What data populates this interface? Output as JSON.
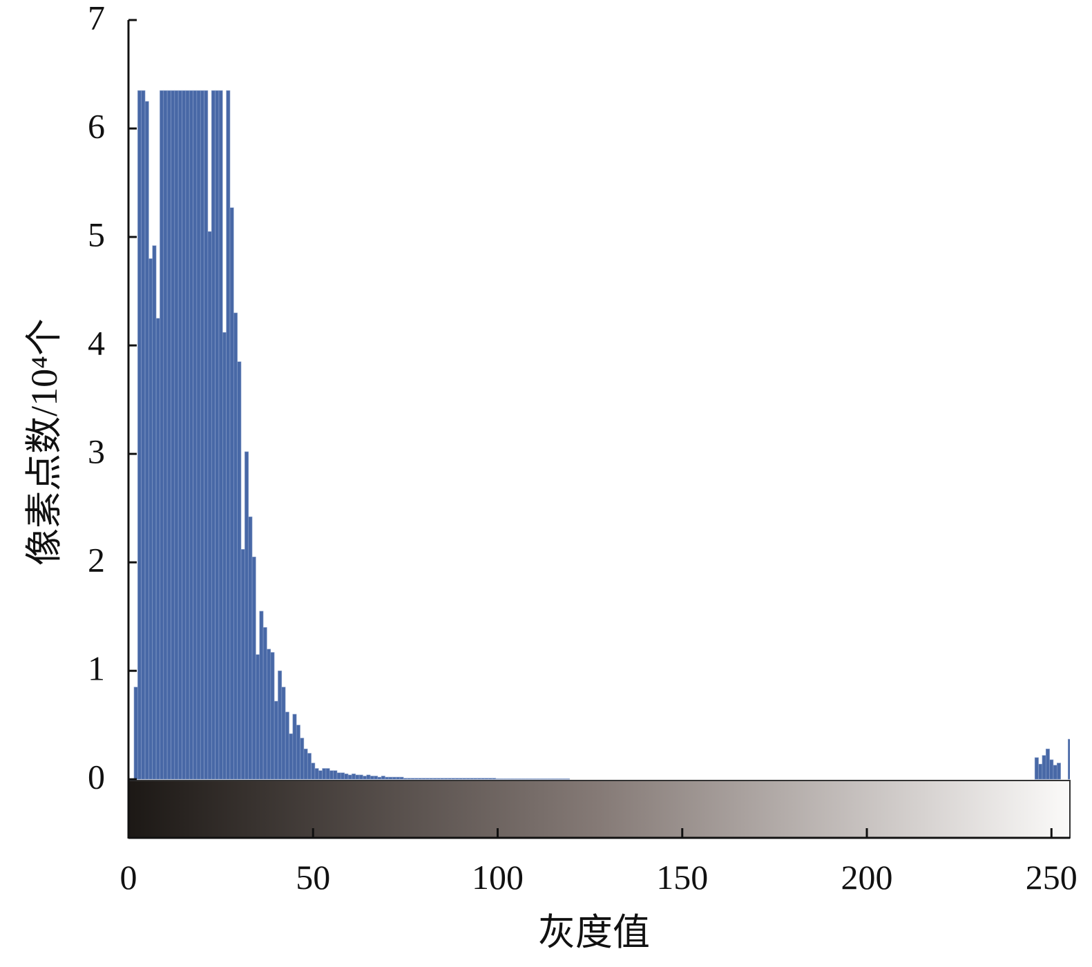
{
  "chart_data": {
    "type": "bar",
    "x_label": "灰度值",
    "y_label": "像素点数/10⁴个",
    "color": "#4868a6",
    "xlim": [
      0,
      255
    ],
    "xticks": [
      0,
      50,
      100,
      150,
      200,
      250
    ],
    "ylim": [
      -0.54,
      7
    ],
    "yticks": [
      0,
      1,
      2,
      3,
      4,
      5,
      6,
      7
    ],
    "x": [
      0,
      1,
      2,
      3,
      4,
      5,
      6,
      7,
      8,
      9,
      10,
      11,
      12,
      13,
      14,
      15,
      16,
      17,
      18,
      19,
      20,
      21,
      22,
      23,
      24,
      25,
      26,
      27,
      28,
      29,
      30,
      31,
      32,
      33,
      34,
      35,
      36,
      37,
      38,
      39,
      40,
      41,
      42,
      43,
      44,
      45,
      46,
      47,
      48,
      49,
      50,
      51,
      52,
      53,
      54,
      55,
      56,
      57,
      58,
      59,
      60,
      61,
      62,
      63,
      64,
      65,
      66,
      67,
      68,
      69,
      70,
      71,
      72,
      73,
      74,
      75,
      76,
      77,
      78,
      79,
      80,
      81,
      82,
      83,
      84,
      85,
      86,
      87,
      88,
      89,
      90,
      91,
      92,
      93,
      94,
      95,
      96,
      97,
      98,
      99,
      100,
      101,
      102,
      103,
      104,
      105,
      106,
      107,
      108,
      109,
      110,
      111,
      112,
      113,
      114,
      115,
      116,
      117,
      118,
      119,
      120,
      121,
      122,
      123,
      124,
      125,
      126,
      127,
      128,
      129,
      130,
      131,
      132,
      133,
      134,
      135,
      136,
      137,
      138,
      139,
      140,
      141,
      142,
      143,
      144,
      145,
      146,
      147,
      148,
      149,
      150,
      151,
      152,
      153,
      154,
      155,
      156,
      157,
      158,
      159,
      160,
      161,
      162,
      163,
      164,
      165,
      166,
      167,
      168,
      169,
      170,
      171,
      172,
      173,
      174,
      175,
      176,
      177,
      178,
      179,
      180,
      181,
      182,
      183,
      184,
      185,
      186,
      187,
      188,
      189,
      190,
      191,
      192,
      193,
      194,
      195,
      196,
      197,
      198,
      199,
      200,
      201,
      202,
      203,
      204,
      205,
      206,
      207,
      208,
      209,
      210,
      211,
      212,
      213,
      214,
      215,
      216,
      217,
      218,
      219,
      220,
      221,
      222,
      223,
      224,
      225,
      226,
      227,
      228,
      229,
      230,
      231,
      232,
      233,
      234,
      235,
      236,
      237,
      238,
      239,
      240,
      241,
      242,
      243,
      244,
      245,
      246,
      247,
      248,
      249,
      250,
      251,
      252,
      253,
      254,
      255
    ],
    "values": [
      0,
      0,
      0.85,
      6.35,
      6.35,
      6.25,
      4.8,
      4.92,
      4.25,
      6.35,
      6.35,
      6.35,
      6.35,
      6.35,
      6.35,
      6.35,
      6.35,
      6.35,
      6.35,
      6.35,
      6.35,
      6.35,
      5.05,
      6.35,
      6.35,
      6.35,
      4.12,
      6.35,
      5.27,
      4.3,
      3.85,
      2.12,
      3.02,
      2.42,
      2.05,
      1.15,
      1.55,
      1.4,
      1.2,
      1.17,
      0.72,
      1.0,
      0.85,
      0.62,
      0.42,
      0.6,
      0.5,
      0.38,
      0.28,
      0.24,
      0.15,
      0.1,
      0.08,
      0.1,
      0.1,
      0.08,
      0.08,
      0.06,
      0.06,
      0.05,
      0.04,
      0.05,
      0.04,
      0.04,
      0.03,
      0.04,
      0.03,
      0.03,
      0.02,
      0.03,
      0.02,
      0.02,
      0.02,
      0.02,
      0.02,
      0.01,
      0.01,
      0.01,
      0.01,
      0.01,
      0.01,
      0.01,
      0.01,
      0.01,
      0.01,
      0.01,
      0.01,
      0.01,
      0.01,
      0.01,
      0.01,
      0.01,
      0.01,
      0.01,
      0.01,
      0.01,
      0.01,
      0.01,
      0.01,
      0.01,
      0.005,
      0.005,
      0.005,
      0.005,
      0.005,
      0.005,
      0.005,
      0.005,
      0.005,
      0.005,
      0.005,
      0.005,
      0.005,
      0.005,
      0.005,
      0.005,
      0.005,
      0.005,
      0.005,
      0.005,
      0,
      0,
      0,
      0,
      0,
      0,
      0,
      0,
      0,
      0,
      0,
      0,
      0,
      0,
      0,
      0,
      0,
      0,
      0,
      0,
      0,
      0,
      0,
      0,
      0,
      0,
      0,
      0,
      0,
      0,
      0,
      0,
      0,
      0,
      0,
      0,
      0,
      0,
      0,
      0,
      0,
      0,
      0,
      0,
      0,
      0,
      0,
      0,
      0,
      0,
      0,
      0,
      0,
      0,
      0,
      0,
      0,
      0,
      0,
      0,
      0,
      0,
      0,
      0,
      0,
      0,
      0,
      0,
      0,
      0,
      0,
      0,
      0,
      0,
      0,
      0,
      0,
      0,
      0,
      0,
      0,
      0,
      0,
      0,
      0,
      0,
      0,
      0,
      0,
      0,
      0,
      0,
      0,
      0,
      0,
      0,
      0,
      0,
      0,
      0,
      0,
      0,
      0,
      0,
      0,
      0,
      0,
      0,
      0,
      0,
      0,
      0,
      0,
      0,
      0,
      0,
      0,
      0,
      0,
      0,
      0,
      0,
      0,
      0,
      0,
      0,
      0.2,
      0.14,
      0.22,
      0.28,
      0.18,
      0.13,
      0.15,
      0,
      0,
      0.37
    ]
  }
}
